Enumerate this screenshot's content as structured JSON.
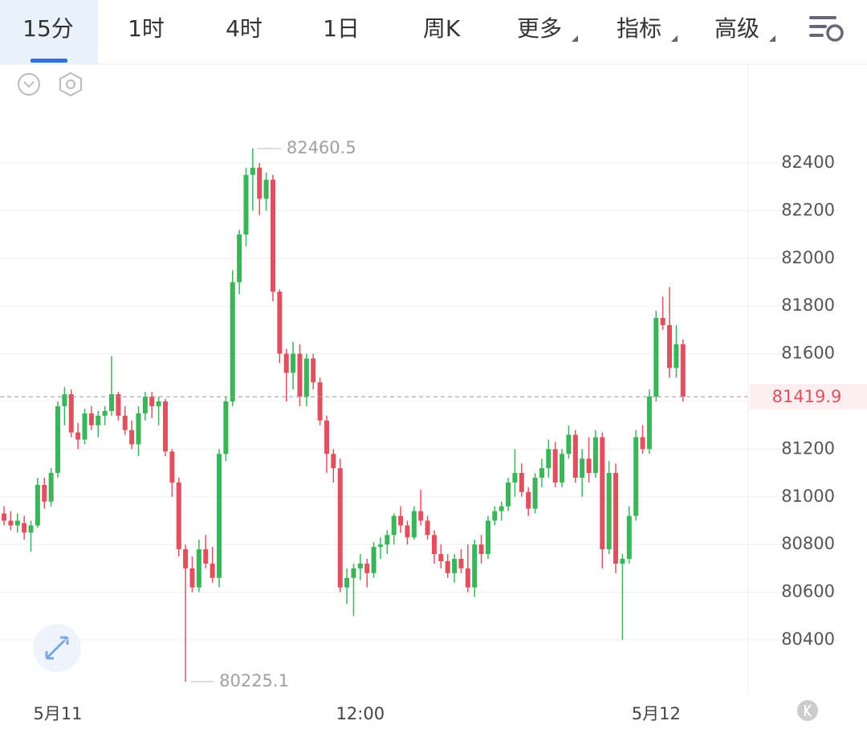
{
  "toolbar": {
    "tabs": [
      "15分",
      "1时",
      "4时",
      "1日",
      "周K",
      "更多",
      "指标",
      "高级"
    ],
    "active": 0
  },
  "chart_data": {
    "type": "candlestick",
    "up_color": "#3cb55a",
    "down_color": "#e0505e",
    "ohlc": [
      [
        80930,
        80960,
        80880,
        80900
      ],
      [
        80900,
        80940,
        80860,
        80880
      ],
      [
        80880,
        80930,
        80850,
        80900
      ],
      [
        80890,
        80920,
        80820,
        80850
      ],
      [
        80850,
        80900,
        80770,
        80880
      ],
      [
        80880,
        81080,
        80870,
        81050
      ],
      [
        81050,
        81080,
        80950,
        80980
      ],
      [
        80980,
        81120,
        80960,
        81100
      ],
      [
        81100,
        81400,
        81080,
        81380
      ],
      [
        81380,
        81460,
        81300,
        81430
      ],
      [
        81430,
        81450,
        81250,
        81270
      ],
      [
        81270,
        81310,
        81200,
        81240
      ],
      [
        81240,
        81370,
        81220,
        81350
      ],
      [
        81350,
        81380,
        81280,
        81300
      ],
      [
        81300,
        81360,
        81250,
        81340
      ],
      [
        81340,
        81380,
        81300,
        81360
      ],
      [
        81360,
        81590,
        81340,
        81430
      ],
      [
        81430,
        81440,
        81320,
        81340
      ],
      [
        81340,
        81380,
        81260,
        81280
      ],
      [
        81280,
        81320,
        81200,
        81220
      ],
      [
        81220,
        81380,
        81170,
        81350
      ],
      [
        81350,
        81440,
        81320,
        81420
      ],
      [
        81420,
        81440,
        81330,
        81380
      ],
      [
        81380,
        81420,
        81300,
        81400
      ],
      [
        81400,
        81410,
        81170,
        81190
      ],
      [
        81190,
        81200,
        81000,
        81060
      ],
      [
        81060,
        81080,
        80750,
        80780
      ],
      [
        80780,
        80800,
        80225.1,
        80700
      ],
      [
        80700,
        80750,
        80600,
        80620
      ],
      [
        80620,
        80820,
        80600,
        80780
      ],
      [
        80780,
        80840,
        80700,
        80720
      ],
      [
        80720,
        80790,
        80640,
        80660
      ],
      [
        80660,
        81200,
        80620,
        81180
      ],
      [
        81180,
        81420,
        81150,
        81400
      ],
      [
        81400,
        81950,
        81380,
        81900
      ],
      [
        81900,
        82120,
        81850,
        82100
      ],
      [
        82100,
        82380,
        82050,
        82350
      ],
      [
        82350,
        82460.5,
        82200,
        82380
      ],
      [
        82380,
        82400,
        82180,
        82250
      ],
      [
        82250,
        82360,
        82200,
        82330
      ],
      [
        82330,
        82350,
        81820,
        81860
      ],
      [
        81860,
        81870,
        81560,
        81600
      ],
      [
        81600,
        81620,
        81400,
        81520
      ],
      [
        81520,
        81650,
        81450,
        81600
      ],
      [
        81600,
        81640,
        81380,
        81420
      ],
      [
        81420,
        81600,
        81380,
        81580
      ],
      [
        81580,
        81600,
        81450,
        81480
      ],
      [
        81480,
        81500,
        81300,
        81320
      ],
      [
        81320,
        81340,
        81100,
        81180
      ],
      [
        81180,
        81200,
        81060,
        81120
      ],
      [
        81120,
        81160,
        80600,
        80620
      ],
      [
        80620,
        80700,
        80550,
        80660
      ],
      [
        80660,
        80720,
        80500,
        80700
      ],
      [
        80700,
        80760,
        80650,
        80720
      ],
      [
        80720,
        80740,
        80620,
        80680
      ],
      [
        80680,
        80810,
        80660,
        80790
      ],
      [
        80790,
        80830,
        80740,
        80800
      ],
      [
        80800,
        80860,
        80760,
        80840
      ],
      [
        80840,
        80930,
        80800,
        80920
      ],
      [
        80920,
        80960,
        80850,
        80880
      ],
      [
        80880,
        80900,
        80800,
        80830
      ],
      [
        80830,
        80960,
        80820,
        80940
      ],
      [
        80940,
        81030,
        80880,
        80900
      ],
      [
        80900,
        80920,
        80820,
        80840
      ],
      [
        80840,
        80860,
        80720,
        80760
      ],
      [
        80760,
        80800,
        80700,
        80730
      ],
      [
        80730,
        80760,
        80660,
        80680
      ],
      [
        80680,
        80760,
        80640,
        80740
      ],
      [
        80740,
        80780,
        80680,
        80700
      ],
      [
        80700,
        80800,
        80600,
        80620
      ],
      [
        80620,
        80820,
        80580,
        80800
      ],
      [
        80800,
        80840,
        80720,
        80760
      ],
      [
        80760,
        80920,
        80740,
        80900
      ],
      [
        80900,
        80960,
        80880,
        80940
      ],
      [
        80940,
        80980,
        80900,
        80960
      ],
      [
        80960,
        81080,
        80940,
        81060
      ],
      [
        81060,
        81200,
        81000,
        81100
      ],
      [
        81100,
        81140,
        81000,
        81020
      ],
      [
        81020,
        81040,
        80920,
        80950
      ],
      [
        80950,
        81100,
        80930,
        81080
      ],
      [
        81080,
        81160,
        81040,
        81120
      ],
      [
        81120,
        81240,
        81080,
        81200
      ],
      [
        81200,
        81230,
        81040,
        81060
      ],
      [
        81060,
        81200,
        81040,
        81180
      ],
      [
        81180,
        81300,
        81160,
        81260
      ],
      [
        81260,
        81280,
        81060,
        81080
      ],
      [
        81080,
        81200,
        81000,
        81160
      ],
      [
        81160,
        81250,
        81060,
        81100
      ],
      [
        81100,
        81280,
        81080,
        81250
      ],
      [
        81250,
        81270,
        80700,
        80780
      ],
      [
        80780,
        81150,
        80760,
        81100
      ],
      [
        81100,
        81140,
        80680,
        80720
      ],
      [
        80720,
        80760,
        80400,
        80740
      ],
      [
        80740,
        80960,
        80720,
        80920
      ],
      [
        80920,
        81280,
        80900,
        81250
      ],
      [
        81250,
        81300,
        81180,
        81200
      ],
      [
        81200,
        81450,
        81180,
        81420
      ],
      [
        81420,
        81780,
        81400,
        81750
      ],
      [
        81750,
        81840,
        81700,
        81720
      ],
      [
        81720,
        81880,
        81500,
        81540
      ],
      [
        81540,
        81720,
        81500,
        81640
      ],
      [
        81640,
        81660,
        81400,
        81419.9
      ]
    ],
    "xlim": [
      -0.6,
      110.7
    ],
    "xticks": [
      {
        "value": 8,
        "label": "5月11"
      },
      {
        "value": 53,
        "label": "12:00"
      },
      {
        "value": 97,
        "label": "5月12"
      }
    ],
    "ylim": [
      80161,
      82814
    ],
    "yticks": [
      80400,
      80600,
      80800,
      81000,
      81200,
      81400,
      81600,
      81800,
      82000,
      82200,
      82400
    ],
    "grid": true,
    "last_price": 81419.9,
    "high_label": 82460.5,
    "low_label": 80225.1
  }
}
